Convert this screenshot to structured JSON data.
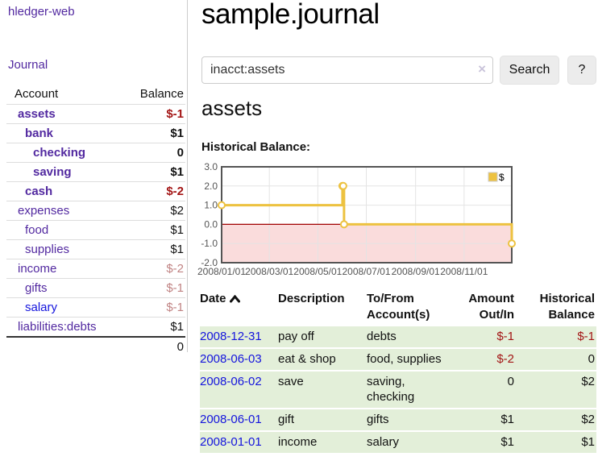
{
  "app": {
    "brand": "hledger-web",
    "nav_journal": "Journal"
  },
  "sidebar": {
    "header_account": "Account",
    "header_balance": "Balance",
    "rows": [
      {
        "name": "assets",
        "balance": "$-1"
      },
      {
        "name": "bank",
        "balance": "$1"
      },
      {
        "name": "checking",
        "balance": "0"
      },
      {
        "name": "saving",
        "balance": "$1"
      },
      {
        "name": "cash",
        "balance": "$-2"
      },
      {
        "name": "expenses",
        "balance": "$2"
      },
      {
        "name": "food",
        "balance": "$1"
      },
      {
        "name": "supplies",
        "balance": "$1"
      },
      {
        "name": "income",
        "balance": "$-2"
      },
      {
        "name": "gifts",
        "balance": "$-1"
      },
      {
        "name": "salary",
        "balance": "$-1"
      },
      {
        "name": "liabilities:debts",
        "balance": "$1"
      }
    ],
    "total": "0"
  },
  "main": {
    "title": "sample.journal",
    "search": {
      "value": "inacct:assets",
      "clear": "×",
      "search_label": "Search",
      "help_label": "?"
    },
    "account_title": "assets",
    "chart_heading": "Historical Balance:"
  },
  "chart_data": {
    "type": "line",
    "title": "Historical Balance",
    "step": true,
    "series": [
      {
        "name": "$",
        "color": "#edc240",
        "points": [
          {
            "x": "2008-01-01",
            "y": 1
          },
          {
            "x": "2008-06-01",
            "y": 2
          },
          {
            "x": "2008-06-02",
            "y": 2
          },
          {
            "x": "2008-06-03",
            "y": 0
          },
          {
            "x": "2008-12-31",
            "y": -1
          }
        ]
      }
    ],
    "xlim": [
      "2008-01-01",
      "2008-12-31"
    ],
    "ylim": [
      -2,
      3
    ],
    "xticks": [
      "2008/01/01",
      "2008/03/01",
      "2008/05/01",
      "2008/07/01",
      "2008/09/01",
      "2008/11/01"
    ],
    "yticks": [
      "3.0",
      "2.0",
      "1.0",
      "0.0",
      "-1.0",
      "-2.0"
    ],
    "grid": true,
    "legend_position": "top-right",
    "colors": {
      "line": "#edc240",
      "marker_fill": "#ffffff",
      "negative_region": "#fadcdc",
      "zero_line": "#a00000",
      "border": "#545454",
      "gridline": "#e4e4e4",
      "tick_text": "#545454"
    }
  },
  "register": {
    "col_date": "Date",
    "col_description": "Description",
    "col_accounts": "To/From\nAccount(s)",
    "col_amount": "Amount\nOut/In",
    "col_balance": "Historical\nBalance",
    "rows": [
      {
        "date": "2008-12-31",
        "description": "pay off",
        "accounts": "debts",
        "amount": "$-1",
        "balance": "$-1"
      },
      {
        "date": "2008-06-03",
        "description": "eat & shop",
        "accounts": "food, supplies",
        "amount": "$-2",
        "balance": "0"
      },
      {
        "date": "2008-06-02",
        "description": "save",
        "accounts": "saving,\nchecking",
        "amount": "0",
        "balance": "$2"
      },
      {
        "date": "2008-06-01",
        "description": "gift",
        "accounts": "gifts",
        "amount": "$1",
        "balance": "$2"
      },
      {
        "date": "2008-01-01",
        "description": "income",
        "accounts": "salary",
        "amount": "$1",
        "balance": "$1"
      }
    ]
  },
  "colors": {
    "link_purple": "#5229a0",
    "link_blue": "#1414dd",
    "negative_strong": "#a31515",
    "negative_faded": "#c08383",
    "row_green": "#e3efd9",
    "button_bg": "#ececec"
  }
}
